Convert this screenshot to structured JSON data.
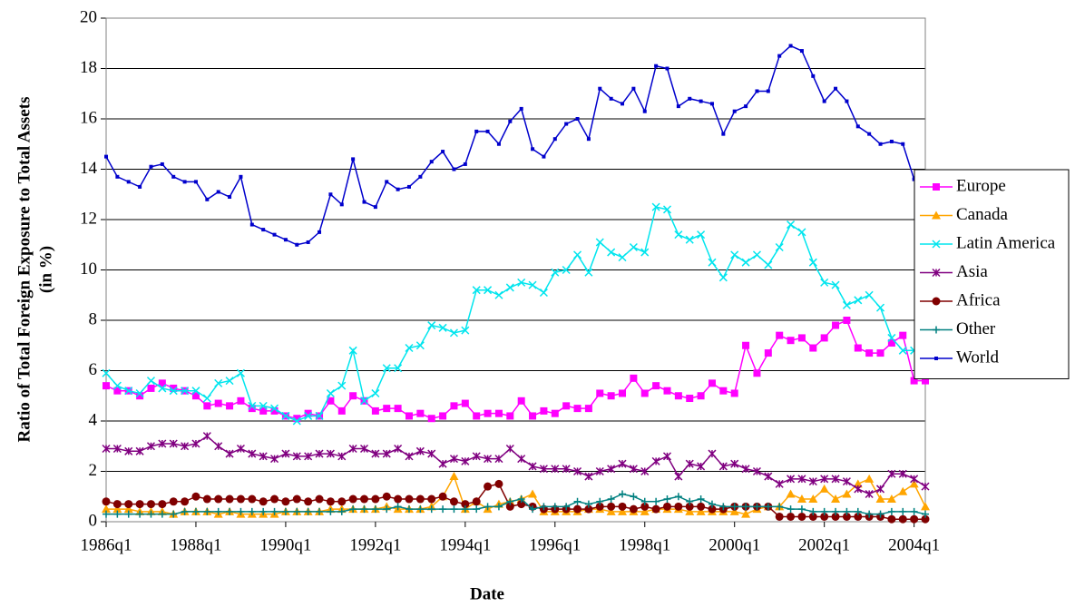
{
  "chart_data": {
    "type": "line",
    "ylabel": [
      "Ratio of Total Foreign Exposure to Total Assets",
      "(in %)"
    ],
    "xlabel": "Date",
    "categories": [
      "1986q1",
      null,
      null,
      null,
      null,
      null,
      null,
      null,
      "1988q1",
      null,
      null,
      null,
      null,
      null,
      null,
      null,
      "1990q1",
      null,
      null,
      null,
      null,
      null,
      null,
      null,
      "1992q1",
      null,
      null,
      null,
      null,
      null,
      null,
      null,
      "1994q1",
      null,
      null,
      null,
      null,
      null,
      null,
      null,
      "1996q1",
      null,
      null,
      null,
      null,
      null,
      null,
      null,
      "1998q1",
      null,
      null,
      null,
      null,
      null,
      null,
      null,
      "2000q1",
      null,
      null,
      null,
      null,
      null,
      null,
      null,
      "2002q1",
      null,
      null,
      null,
      null,
      null,
      null,
      null,
      "2004q1",
      null
    ],
    "ylim": [
      0,
      20
    ],
    "yticks": [
      0,
      2,
      4,
      6,
      8,
      10,
      12,
      14,
      16,
      18,
      20
    ],
    "grid": true,
    "legend": "right",
    "series": [
      {
        "name": "Europe",
        "color": "#ff00ff",
        "marker": "square",
        "values": [
          5.4,
          5.2,
          5.2,
          5.0,
          5.3,
          5.5,
          5.3,
          5.2,
          5.0,
          4.6,
          4.7,
          4.6,
          4.8,
          4.5,
          4.4,
          4.4,
          4.2,
          4.1,
          4.3,
          4.2,
          4.8,
          4.4,
          5.0,
          4.8,
          4.4,
          4.5,
          4.5,
          4.2,
          4.3,
          4.1,
          4.2,
          4.6,
          4.7,
          4.2,
          4.3,
          4.3,
          4.2,
          4.8,
          4.2,
          4.4,
          4.3,
          4.6,
          4.5,
          4.5,
          5.1,
          5.0,
          5.1,
          5.7,
          5.1,
          5.4,
          5.2,
          5.0,
          4.9,
          5.0,
          5.5,
          5.2,
          5.1,
          7.0,
          5.9,
          6.7,
          7.4,
          7.2,
          7.3,
          6.9,
          7.3,
          7.8,
          8.0,
          6.9,
          6.7,
          6.7,
          7.1,
          7.4,
          5.6,
          5.6
        ]
      },
      {
        "name": "Canada",
        "color": "#ffa500",
        "marker": "triangle",
        "values": [
          0.5,
          0.5,
          0.5,
          0.4,
          0.4,
          0.4,
          0.3,
          0.4,
          0.4,
          0.4,
          0.3,
          0.4,
          0.3,
          0.3,
          0.3,
          0.3,
          0.4,
          0.4,
          0.4,
          0.4,
          0.5,
          0.5,
          0.5,
          0.5,
          0.5,
          0.6,
          0.5,
          0.5,
          0.5,
          0.6,
          1.0,
          1.8,
          0.5,
          0.8,
          0.5,
          0.7,
          0.8,
          0.9,
          1.1,
          0.4,
          0.4,
          0.4,
          0.4,
          0.5,
          0.5,
          0.4,
          0.4,
          0.4,
          0.4,
          0.5,
          0.5,
          0.5,
          0.4,
          0.4,
          0.4,
          0.4,
          0.4,
          0.3,
          0.5,
          0.6,
          0.6,
          1.1,
          0.9,
          0.9,
          1.3,
          0.9,
          1.1,
          1.5,
          1.7,
          0.9,
          0.9,
          1.2,
          1.5,
          0.6
        ]
      },
      {
        "name": "Latin America",
        "color": "#00e5ee",
        "marker": "x",
        "values": [
          5.9,
          5.4,
          5.2,
          5.1,
          5.6,
          5.3,
          5.2,
          5.2,
          5.2,
          4.9,
          5.5,
          5.6,
          5.9,
          4.6,
          4.6,
          4.5,
          4.2,
          4.0,
          4.2,
          4.2,
          5.1,
          5.4,
          6.8,
          4.8,
          5.1,
          6.1,
          6.1,
          6.9,
          7.0,
          7.8,
          7.7,
          7.5,
          7.6,
          9.2,
          9.2,
          9.0,
          9.3,
          9.5,
          9.4,
          9.1,
          9.9,
          10.0,
          10.6,
          9.9,
          11.1,
          10.7,
          10.5,
          10.9,
          10.7,
          12.5,
          12.4,
          11.4,
          11.2,
          11.4,
          10.3,
          9.7,
          10.6,
          10.3,
          10.6,
          10.2,
          10.9,
          11.8,
          11.5,
          10.3,
          9.5,
          9.4,
          8.6,
          8.8,
          9.0,
          8.5,
          7.3,
          6.8,
          6.8,
          6.6
        ]
      },
      {
        "name": "Asia",
        "color": "#800080",
        "marker": "star",
        "values": [
          2.9,
          2.9,
          2.8,
          2.8,
          3.0,
          3.1,
          3.1,
          3.0,
          3.1,
          3.4,
          3.0,
          2.7,
          2.9,
          2.7,
          2.6,
          2.5,
          2.7,
          2.6,
          2.6,
          2.7,
          2.7,
          2.6,
          2.9,
          2.9,
          2.7,
          2.7,
          2.9,
          2.6,
          2.8,
          2.7,
          2.3,
          2.5,
          2.4,
          2.6,
          2.5,
          2.5,
          2.9,
          2.5,
          2.2,
          2.1,
          2.1,
          2.1,
          2.0,
          1.8,
          2.0,
          2.1,
          2.3,
          2.1,
          2.0,
          2.4,
          2.6,
          1.8,
          2.3,
          2.2,
          2.7,
          2.2,
          2.3,
          2.1,
          2.0,
          1.8,
          1.5,
          1.7,
          1.7,
          1.6,
          1.7,
          1.7,
          1.6,
          1.3,
          1.1,
          1.3,
          1.9,
          1.9,
          1.7,
          1.4
        ]
      },
      {
        "name": "Africa",
        "color": "#800000",
        "marker": "circle",
        "values": [
          0.8,
          0.7,
          0.7,
          0.7,
          0.7,
          0.7,
          0.8,
          0.8,
          1.0,
          0.9,
          0.9,
          0.9,
          0.9,
          0.9,
          0.8,
          0.9,
          0.8,
          0.9,
          0.8,
          0.9,
          0.8,
          0.8,
          0.9,
          0.9,
          0.9,
          1.0,
          0.9,
          0.9,
          0.9,
          0.9,
          1.0,
          0.8,
          0.7,
          0.8,
          1.4,
          1.5,
          0.6,
          0.7,
          0.6,
          0.5,
          0.5,
          0.5,
          0.5,
          0.5,
          0.6,
          0.6,
          0.6,
          0.5,
          0.6,
          0.5,
          0.6,
          0.6,
          0.6,
          0.6,
          0.5,
          0.5,
          0.6,
          0.6,
          0.6,
          0.6,
          0.2,
          0.2,
          0.2,
          0.2,
          0.2,
          0.2,
          0.2,
          0.2,
          0.2,
          0.2,
          0.1,
          0.1,
          0.1,
          0.1
        ]
      },
      {
        "name": "Other",
        "color": "#008080",
        "marker": "plus",
        "values": [
          0.3,
          0.3,
          0.3,
          0.3,
          0.3,
          0.3,
          0.3,
          0.4,
          0.4,
          0.4,
          0.4,
          0.4,
          0.4,
          0.4,
          0.4,
          0.4,
          0.4,
          0.4,
          0.4,
          0.4,
          0.4,
          0.4,
          0.5,
          0.5,
          0.5,
          0.5,
          0.6,
          0.5,
          0.5,
          0.5,
          0.5,
          0.5,
          0.5,
          0.5,
          0.6,
          0.6,
          0.8,
          0.9,
          0.5,
          0.6,
          0.6,
          0.6,
          0.8,
          0.7,
          0.8,
          0.9,
          1.1,
          1.0,
          0.8,
          0.8,
          0.9,
          1.0,
          0.8,
          0.9,
          0.7,
          0.6,
          0.6,
          0.6,
          0.6,
          0.6,
          0.6,
          0.5,
          0.5,
          0.4,
          0.4,
          0.4,
          0.4,
          0.4,
          0.3,
          0.3,
          0.4,
          0.4,
          0.4,
          0.3
        ]
      },
      {
        "name": "World",
        "color": "#0000cc",
        "marker": "dot",
        "values": [
          14.5,
          13.7,
          13.5,
          13.3,
          14.1,
          14.2,
          13.7,
          13.5,
          13.5,
          12.8,
          13.1,
          12.9,
          13.7,
          11.8,
          11.6,
          11.4,
          11.2,
          11.0,
          11.1,
          11.5,
          13.0,
          12.6,
          14.4,
          12.7,
          12.5,
          13.5,
          13.2,
          13.3,
          13.7,
          14.3,
          14.7,
          14.0,
          14.2,
          15.5,
          15.5,
          15.0,
          15.9,
          16.4,
          14.8,
          14.5,
          15.2,
          15.8,
          16.0,
          15.2,
          17.2,
          16.8,
          16.6,
          17.2,
          16.3,
          18.1,
          18.0,
          16.5,
          16.8,
          16.7,
          16.6,
          15.4,
          16.3,
          16.5,
          17.1,
          17.1,
          18.5,
          18.9,
          18.7,
          17.7,
          16.7,
          17.2,
          16.7,
          15.7,
          15.4,
          15.0,
          15.1,
          15.0,
          13.6,
          12.3
        ]
      }
    ]
  }
}
